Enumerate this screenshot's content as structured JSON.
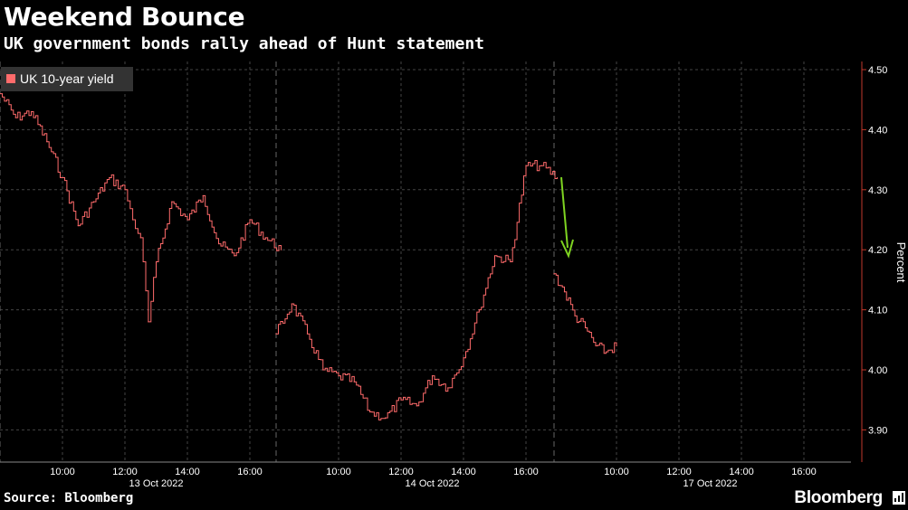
{
  "header": {
    "title": "Weekend Bounce",
    "subtitle": "UK government bonds rally ahead of Hunt statement"
  },
  "footer": {
    "source": "Source: Bloomberg",
    "brand": "Bloomberg"
  },
  "colors": {
    "background": "#000000",
    "series": "#ff6b6b",
    "grid": "#444444",
    "arrow": "#7ed321",
    "day_separator": "#666666"
  },
  "icons": [
    "bloomberg-terminal-icon"
  ],
  "chart_data": {
    "type": "line",
    "ylabel": "Percent",
    "ylim": [
      3.84,
      4.51
    ],
    "y_ticks": [
      "4.50",
      "4.40",
      "4.30",
      "4.20",
      "4.10",
      "4.00",
      "3.90"
    ],
    "y_tick_values": [
      4.5,
      4.4,
      4.3,
      4.2,
      4.1,
      4.0,
      3.9
    ],
    "x_tick_labels": [
      "10:00",
      "12:00",
      "14:00",
      "16:00",
      "10:00",
      "12:00",
      "14:00",
      "16:00",
      "10:00",
      "12:00",
      "14:00",
      "16:00"
    ],
    "day_labels": [
      "13 Oct 2022",
      "14 Oct 2022",
      "17 Oct 2022"
    ],
    "legend": [
      "UK 10-year yield"
    ],
    "grid": true,
    "legend_position": "top-left",
    "annotation": "green arrow pointing down at start of 17 Oct session",
    "series": [
      {
        "name": "UK 10-year yield",
        "days": [
          {
            "day": "13 Oct 2022",
            "times": [
              "08:00",
              "08:30",
              "09:00",
              "09:30",
              "10:00",
              "10:30",
              "11:00",
              "11:30",
              "12:00",
              "12:15",
              "12:30",
              "12:45",
              "13:00",
              "13:30",
              "14:00",
              "14:30",
              "15:00",
              "15:30",
              "16:00",
              "16:30",
              "17:00"
            ],
            "values": [
              4.46,
              4.42,
              4.43,
              4.38,
              4.32,
              4.24,
              4.28,
              4.32,
              4.3,
              4.25,
              4.22,
              4.08,
              4.18,
              4.28,
              4.25,
              4.29,
              4.21,
              4.19,
              4.25,
              4.22,
              4.2
            ]
          },
          {
            "day": "14 Oct 2022",
            "times": [
              "08:00",
              "08:30",
              "09:00",
              "09:30",
              "10:00",
              "10:30",
              "11:00",
              "11:30",
              "12:00",
              "12:30",
              "13:00",
              "13:30",
              "14:00",
              "14:30",
              "15:00",
              "15:30",
              "16:00",
              "16:30",
              "17:00"
            ],
            "values": [
              4.06,
              4.11,
              4.06,
              4.0,
              3.99,
              3.98,
              3.93,
              3.92,
              3.95,
              3.94,
              3.99,
              3.97,
              4.02,
              4.1,
              4.19,
              4.18,
              4.34,
              4.34,
              4.32
            ]
          },
          {
            "day": "17 Oct 2022",
            "times": [
              "08:00",
              "08:20",
              "08:40",
              "09:00",
              "09:20",
              "09:40",
              "10:00"
            ],
            "values": [
              4.16,
              4.13,
              4.09,
              4.07,
              4.04,
              4.03,
              4.04
            ]
          }
        ]
      }
    ]
  }
}
